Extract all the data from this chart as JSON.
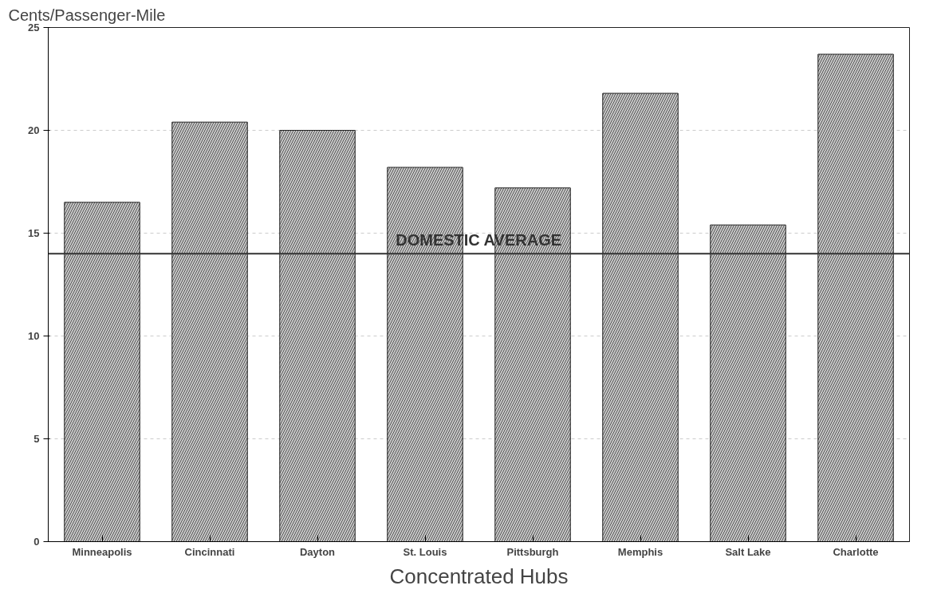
{
  "chart_data": {
    "type": "bar",
    "ylabel": "Cents/Passenger-Mile",
    "xlabel": "Concentrated Hubs",
    "categories": [
      "Minneapolis",
      "Cincinnati",
      "Dayton",
      "St. Louis",
      "Pittsburgh",
      "Memphis",
      "Salt Lake",
      "Charlotte"
    ],
    "values": [
      16.5,
      20.4,
      20.0,
      18.2,
      17.2,
      21.8,
      15.4,
      23.7
    ],
    "color": "#c8c8c8",
    "ylim": [
      0,
      25
    ],
    "yticks": [
      0,
      5,
      10,
      15,
      20,
      25
    ],
    "grid": "y",
    "ref_lines": [
      {
        "axis": "y",
        "value": 14,
        "label": "DOMESTIC AVERAGE",
        "color": "#333333"
      }
    ]
  }
}
